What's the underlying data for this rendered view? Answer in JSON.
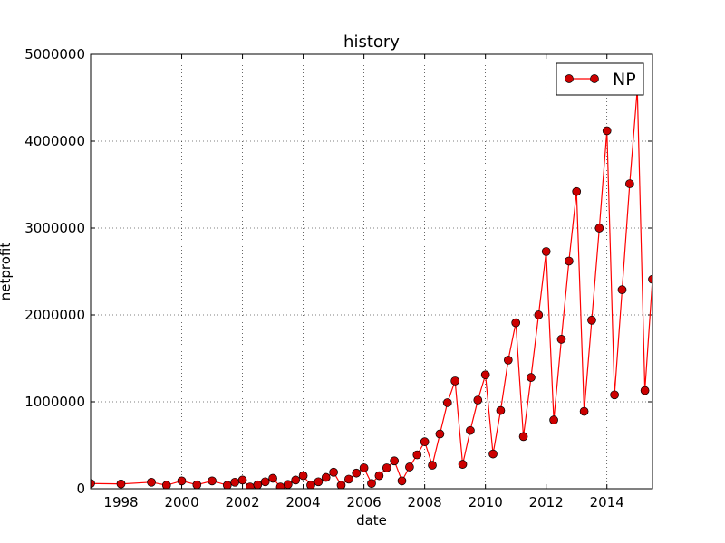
{
  "chart_data": {
    "type": "line",
    "title": "history",
    "xlabel": "date",
    "ylabel": "netprofit",
    "xlim": [
      1997.0,
      2015.5
    ],
    "ylim": [
      0,
      5000000
    ],
    "xticks": [
      1998,
      2000,
      2002,
      2004,
      2006,
      2008,
      2010,
      2012,
      2014
    ],
    "xtick_labels": [
      "1998",
      "2000",
      "2002",
      "2004",
      "2006",
      "2008",
      "2010",
      "2012",
      "2014"
    ],
    "yticks": [
      0,
      1000000,
      2000000,
      3000000,
      4000000,
      5000000
    ],
    "ytick_labels": [
      "0",
      "1000000",
      "2000000",
      "3000000",
      "4000000",
      "5000000"
    ],
    "grid": true,
    "legend_position": "top-right",
    "colors": {
      "line": "#ff0000",
      "marker": "#cc0000"
    },
    "series": [
      {
        "name": "NP",
        "marker": "circle",
        "x": [
          1997.0,
          1998.0,
          1999.0,
          1999.5,
          2000.0,
          2000.5,
          2001.0,
          2001.5,
          2001.75,
          2002.0,
          2002.25,
          2002.5,
          2002.75,
          2003.0,
          2003.25,
          2003.5,
          2003.75,
          2004.0,
          2004.25,
          2004.5,
          2004.75,
          2005.0,
          2005.25,
          2005.5,
          2005.75,
          2006.0,
          2006.25,
          2006.5,
          2006.75,
          2007.0,
          2007.25,
          2007.5,
          2007.75,
          2008.0,
          2008.25,
          2008.5,
          2008.75,
          2009.0,
          2009.25,
          2009.5,
          2009.75,
          2010.0,
          2010.25,
          2010.5,
          2010.75,
          2011.0,
          2011.25,
          2011.5,
          2011.75,
          2012.0,
          2012.25,
          2012.5,
          2012.75,
          2013.0,
          2013.25,
          2013.5,
          2013.75,
          2014.0,
          2014.25,
          2014.5,
          2014.75,
          2015.0,
          2015.25,
          2015.5
        ],
        "y": [
          60000,
          55000,
          75000,
          40000,
          90000,
          45000,
          90000,
          40000,
          75000,
          100000,
          20000,
          45000,
          80000,
          120000,
          20000,
          50000,
          100000,
          150000,
          40000,
          80000,
          130000,
          190000,
          40000,
          110000,
          180000,
          240000,
          60000,
          150000,
          240000,
          320000,
          90000,
          250000,
          390000,
          540000,
          270000,
          630000,
          990000,
          1240000,
          280000,
          670000,
          1020000,
          1310000,
          400000,
          900000,
          1480000,
          1910000,
          600000,
          1280000,
          2000000,
          2730000,
          790000,
          1720000,
          2620000,
          3420000,
          890000,
          1940000,
          3000000,
          4120000,
          1080000,
          2290000,
          3510000,
          4600000,
          1130000,
          2410000
        ]
      }
    ]
  }
}
